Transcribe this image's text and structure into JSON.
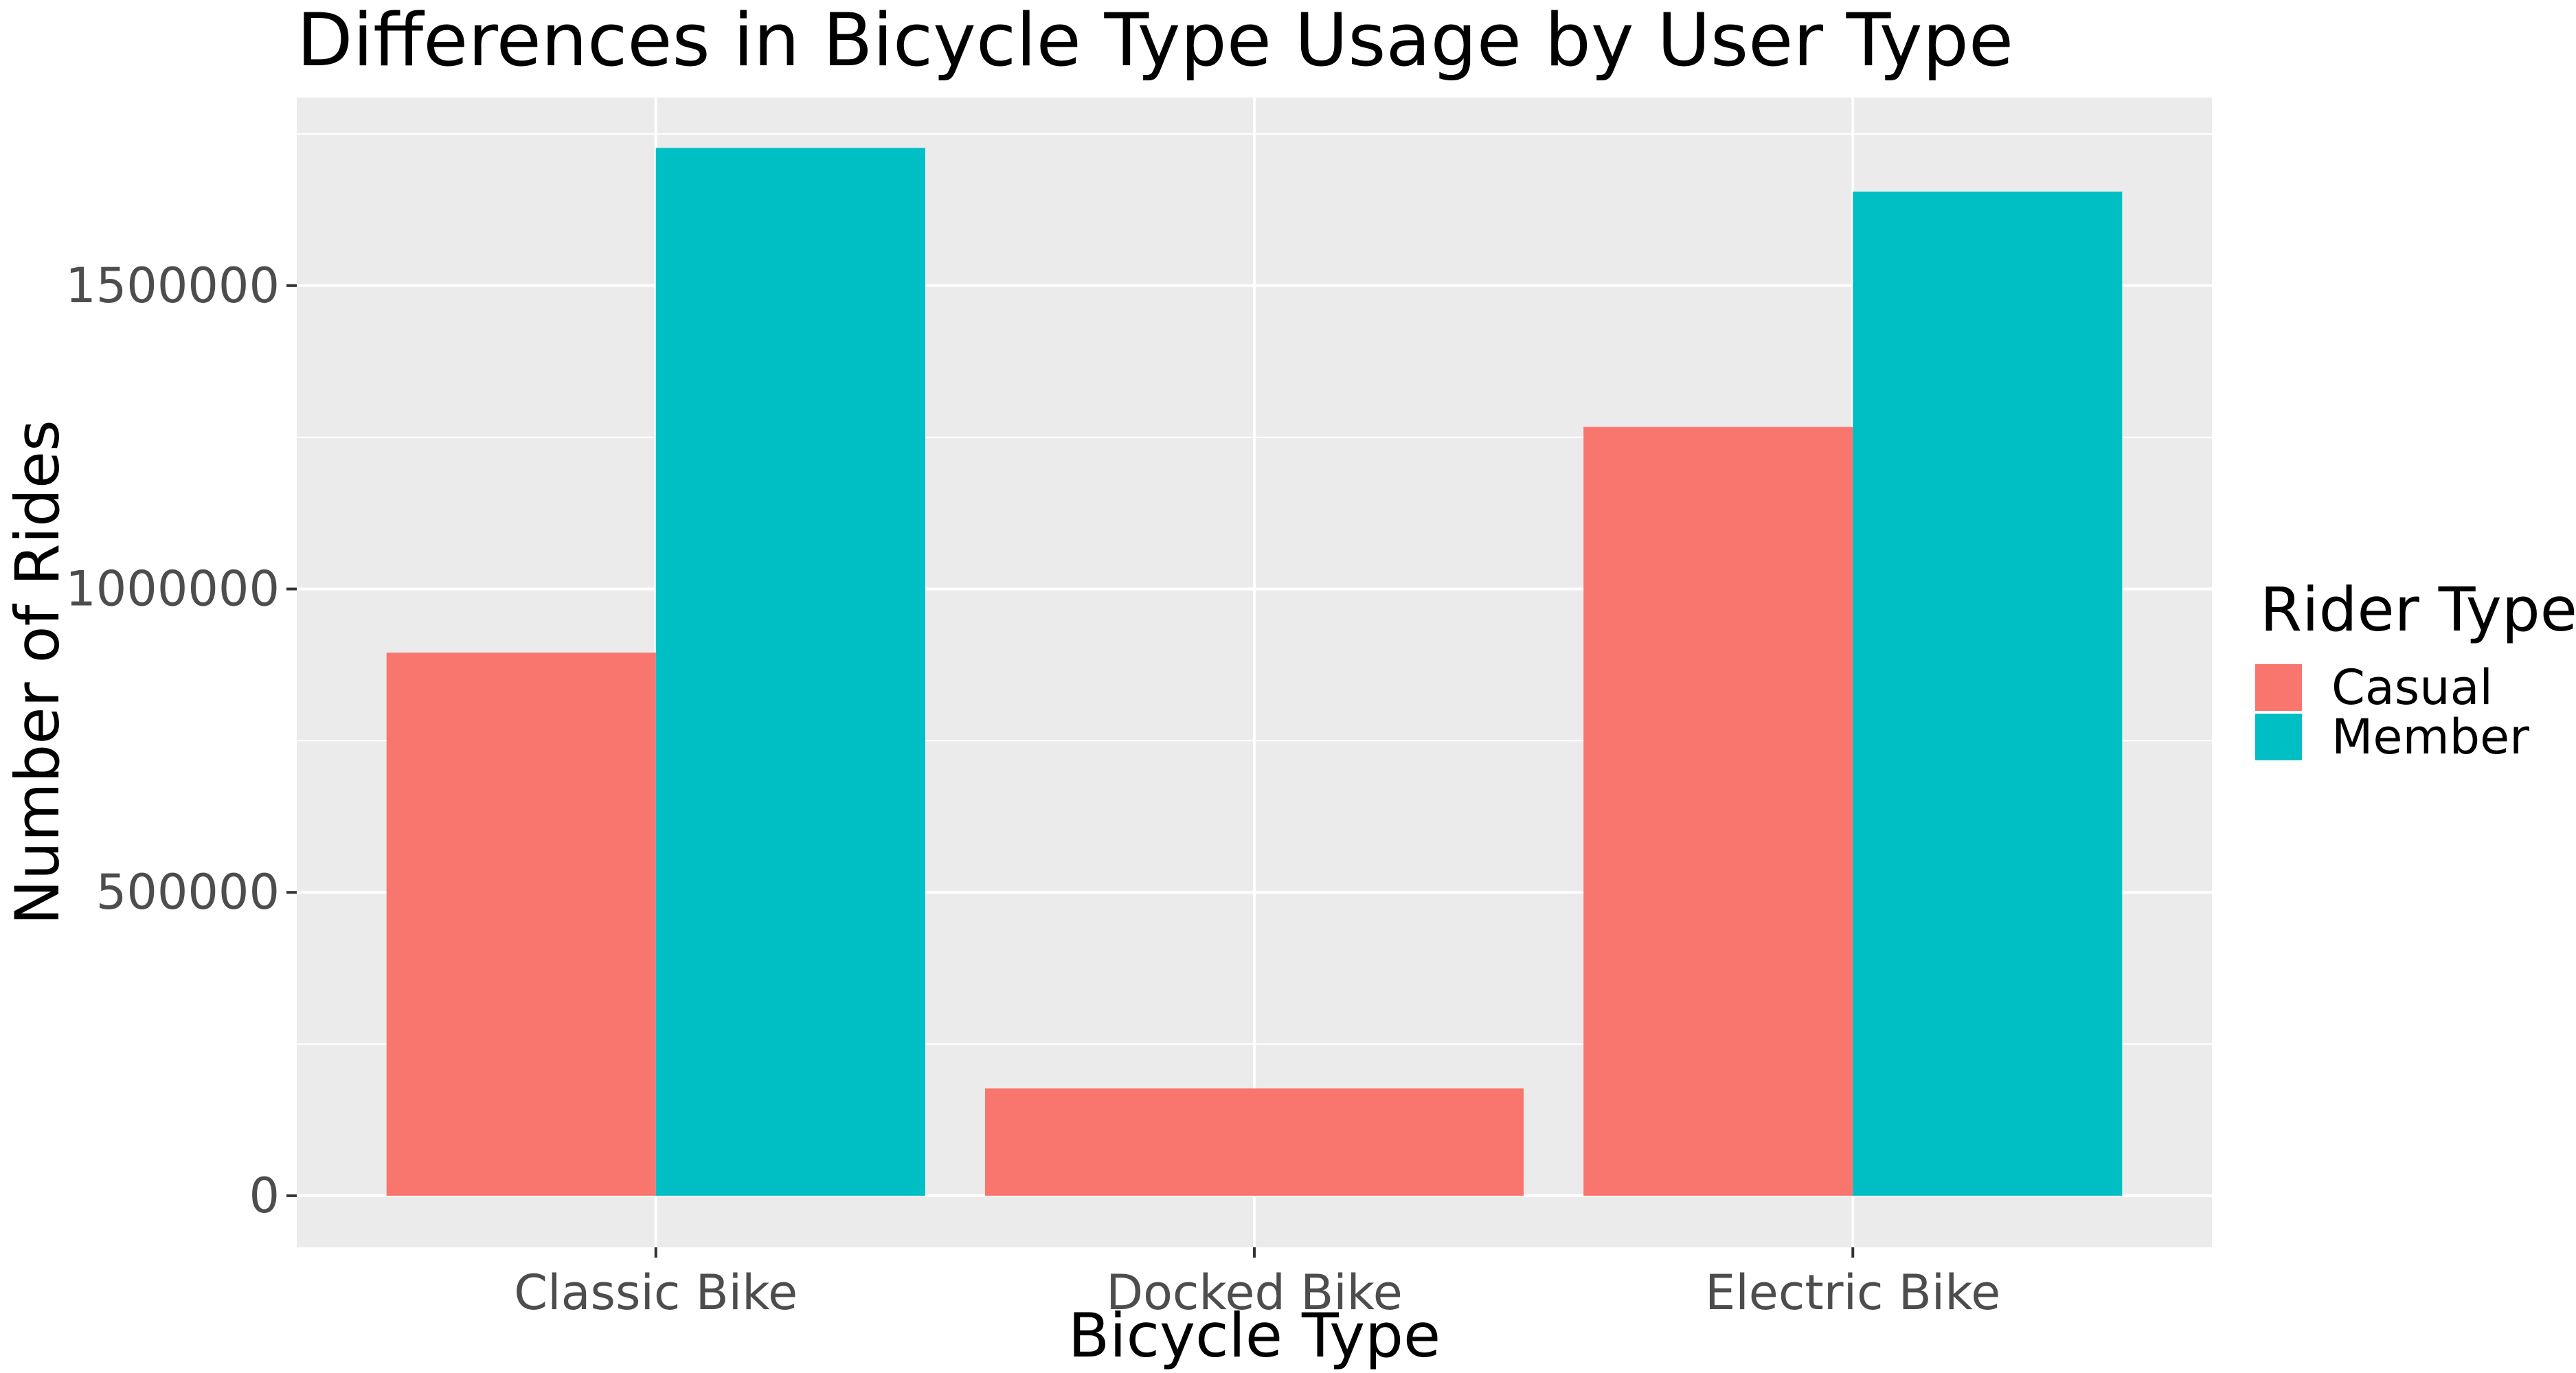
{
  "chart_data": {
    "type": "bar",
    "title": "Differences in Bicycle Type Usage by User Type",
    "xlabel": "Bicycle Type",
    "ylabel": "Number of Rides",
    "categories": [
      "Classic Bike",
      "Docked Bike",
      "Electric Bike"
    ],
    "series": [
      {
        "name": "Casual",
        "color": "#F8766D",
        "values": [
          895000,
          177000,
          1267000
        ]
      },
      {
        "name": "Member",
        "color": "#00BFC4",
        "values": [
          1727000,
          null,
          1655000
        ]
      }
    ],
    "ylim": [
      -85000,
      1810000
    ],
    "yticks": [
      0,
      500000,
      1000000,
      1500000
    ],
    "ytick_labels": [
      "0",
      "500000",
      "1000000",
      "1500000"
    ],
    "grid": true,
    "panel_background": "#EBEBEB",
    "legend": {
      "title": "Rider Type",
      "position": "right"
    }
  }
}
